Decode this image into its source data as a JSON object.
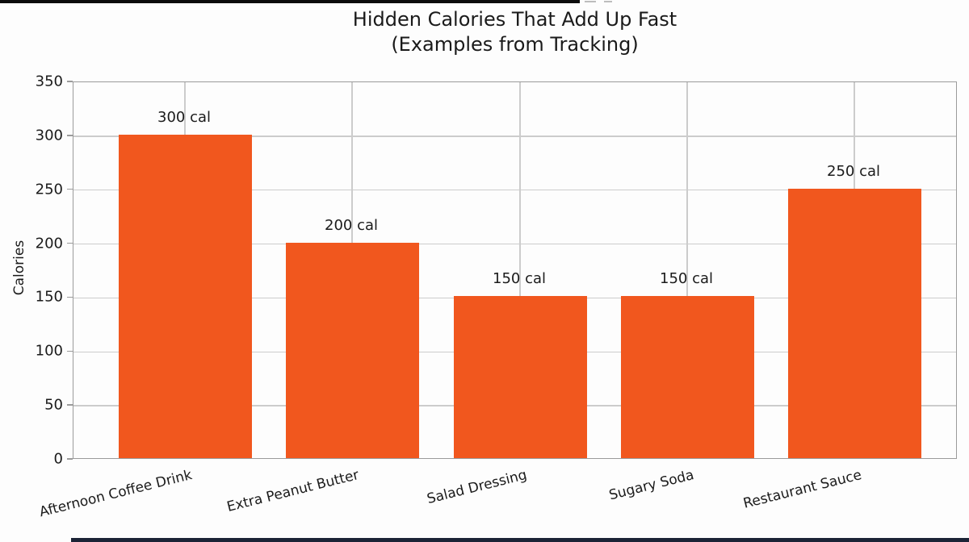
{
  "page": {
    "background_color": "#fdfdfd",
    "top_strip_color": "#0c0c0c",
    "bottom_strip_color": "#1b2336"
  },
  "chart_data": {
    "type": "bar",
    "title": "Hidden Calories That Add Up Fast",
    "subtitle": "(Examples from Tracking)",
    "categories": [
      "Afternoon Coffee Drink",
      "Extra Peanut Butter",
      "Salad Dressing",
      "Sugary Soda",
      "Restaurant Sauce"
    ],
    "values": [
      300,
      200,
      150,
      150,
      250
    ],
    "value_labels": [
      "300 cal",
      "200 cal",
      "150 cal",
      "150 cal",
      "250 cal"
    ],
    "xlabel": "",
    "ylabel": "Calories",
    "ylim": [
      0,
      350
    ],
    "yticks": [
      0,
      50,
      100,
      150,
      200,
      250,
      300,
      350
    ],
    "ytick_labels": [
      "0",
      "50",
      "100",
      "150",
      "200",
      "250",
      "300",
      "350"
    ],
    "grid": true,
    "legend": "none",
    "bar_color": "#F1571E",
    "grid_color": "#cccccc",
    "spine_color": "#9b9b9b",
    "text_color": "#1b1b1b"
  }
}
